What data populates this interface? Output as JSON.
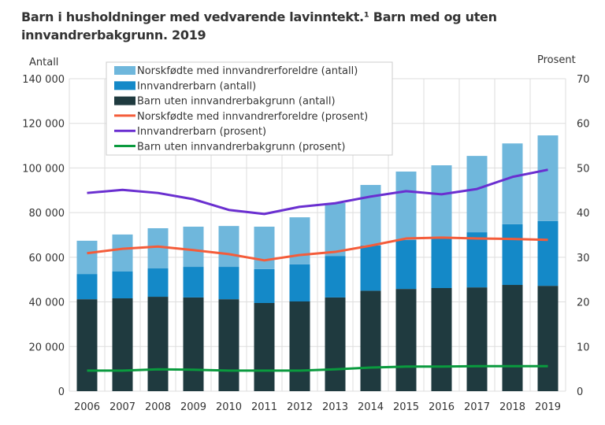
{
  "chart_data": {
    "type": "bar+line",
    "title": "Barn i husholdninger med vedvarende lavinntekt.¹ Barn med og uten innvandrerbakgrunn. 2019",
    "ylabel_left": "Antall",
    "ylabel_right": "Prosent",
    "ylim_left": [
      0,
      140000
    ],
    "ylim_right": [
      0,
      70
    ],
    "yticks_left": [
      "0",
      "20 000",
      "40 000",
      "60 000",
      "80 000",
      "100 000",
      "120 000",
      "140 000"
    ],
    "yticks_right": [
      "0",
      "10",
      "20",
      "30",
      "40",
      "50",
      "60",
      "70"
    ],
    "grid": true,
    "legend_position": "top-left",
    "categories": [
      "2006",
      "2007",
      "2008",
      "2009",
      "2010",
      "2011",
      "2012",
      "2013",
      "2014",
      "2015",
      "2016",
      "2017",
      "2018",
      "2019"
    ],
    "bar_series": [
      {
        "name": "Barn uten innvandrerbakgrunn (antall)",
        "color": "#1f3a3f",
        "values": [
          41200,
          41600,
          42300,
          42000,
          41200,
          39500,
          40200,
          42000,
          45000,
          45800,
          46200,
          46500,
          47600,
          47200
        ]
      },
      {
        "name": "Innvandrerbarn (antall)",
        "color": "#1489c8",
        "values": [
          11300,
          12000,
          12700,
          13700,
          14500,
          15200,
          16600,
          18600,
          20300,
          21900,
          22200,
          24700,
          27200,
          29000
        ]
      },
      {
        "name": "Norskfødte med innvandrerforeldre (antall)",
        "color": "#6fb7dc",
        "values": [
          14900,
          16600,
          18000,
          18000,
          18300,
          19000,
          21100,
          23700,
          27100,
          30700,
          32800,
          34200,
          36200,
          38400
        ]
      }
    ],
    "line_series": [
      {
        "name": "Norskfødte med innvandrerforeldre (prosent)",
        "color": "#f45c3a",
        "values": [
          30.9,
          31.9,
          32.4,
          31.6,
          30.7,
          29.3,
          30.5,
          31.2,
          32.6,
          34.2,
          34.4,
          34.2,
          34.1,
          33.9
        ]
      },
      {
        "name": "Innvandrerbarn (prosent)",
        "color": "#6a2fd0",
        "values": [
          44.4,
          45.1,
          44.4,
          43.0,
          40.6,
          39.7,
          41.3,
          42.1,
          43.6,
          44.8,
          44.1,
          45.3,
          48.0,
          49.6
        ]
      },
      {
        "name": "Barn uten innvandrerbakgrunn (prosent)",
        "color": "#0a9a3e",
        "values": [
          4.6,
          4.6,
          4.9,
          4.8,
          4.6,
          4.6,
          4.6,
          4.9,
          5.3,
          5.5,
          5.5,
          5.6,
          5.6,
          5.6
        ]
      }
    ],
    "legend_order": [
      "Norskfødte med innvandrerforeldre (antall)",
      "Innvandrerbarn (antall)",
      "Barn uten innvandrerbakgrunn (antall)",
      "Norskfødte med innvandrerforeldre (prosent)",
      "Innvandrerbarn (prosent)",
      "Barn uten innvandrerbakgrunn (prosent)"
    ]
  }
}
